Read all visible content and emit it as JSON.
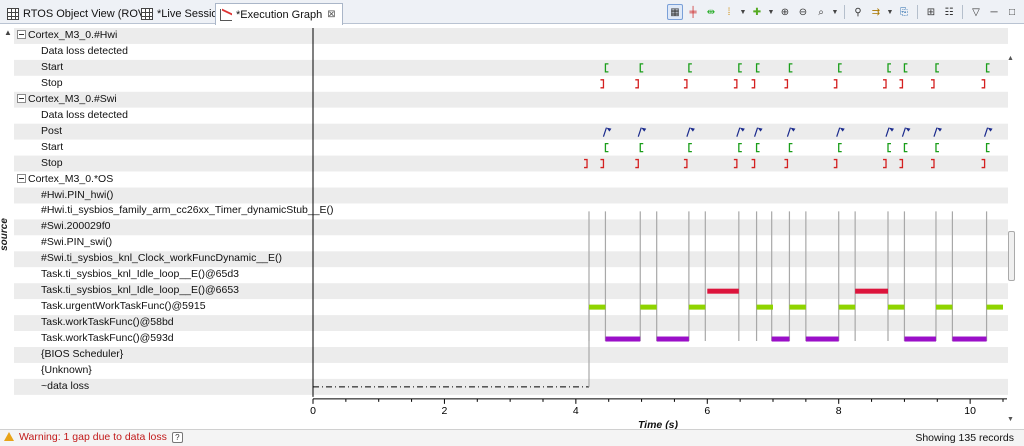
{
  "tabs": [
    {
      "label": "RTOS Object View (ROV)",
      "icon": "grid-icon",
      "active": false
    },
    {
      "label": "*Live Session",
      "icon": "grid-icon",
      "active": false
    },
    {
      "label": "*Execution Graph",
      "icon": "graph-icon",
      "active": true
    }
  ],
  "toolbar": {
    "buttons": [
      "view-toggle-icon",
      "align-time-icon",
      "measure-icon",
      "bookmark-icon",
      "zoom-in-icon",
      "zoom-out-icon",
      "zoom-fit-icon",
      "find-icon",
      "filter-icon",
      "export-icon",
      "sync-icon",
      "group-icon"
    ],
    "menu_label": "▽",
    "minimize_label": "─",
    "maximize_label": "□"
  },
  "axis": {
    "ylabel": "source",
    "xlabel": "Time (s)",
    "ticks": [
      0,
      2,
      4,
      6,
      8,
      10
    ],
    "xlim": [
      0,
      10.5
    ]
  },
  "rows": [
    {
      "label": "Cortex_M3_0.#Hwi",
      "group": true
    },
    {
      "label": "Data loss detected",
      "group": false
    },
    {
      "label": "Start",
      "group": false
    },
    {
      "label": "Stop",
      "group": false
    },
    {
      "label": "Cortex_M3_0.#Swi",
      "group": true
    },
    {
      "label": "Data loss detected",
      "group": false
    },
    {
      "label": "Post",
      "group": false
    },
    {
      "label": "Start",
      "group": false
    },
    {
      "label": "Stop",
      "group": false
    },
    {
      "label": "Cortex_M3_0.*OS",
      "group": true
    },
    {
      "label": "#Hwi.PIN_hwi()",
      "group": false
    },
    {
      "label": "#Hwi.ti_sysbios_family_arm_cc26xx_Timer_dynamicStub__E()",
      "group": false
    },
    {
      "label": "#Swi.200029f0",
      "group": false
    },
    {
      "label": "#Swi.PIN_swi()",
      "group": false
    },
    {
      "label": "#Swi.ti_sysbios_knl_Clock_workFuncDynamic__E()",
      "group": false
    },
    {
      "label": "Task.ti_sysbios_knl_Idle_loop__E()@65d3",
      "group": false
    },
    {
      "label": "Task.ti_sysbios_knl_Idle_loop__E()@6653",
      "group": false
    },
    {
      "label": "Task.urgentWorkTaskFunc()@5915",
      "group": false
    },
    {
      "label": "Task.workTaskFunc()@58bd",
      "group": false
    },
    {
      "label": "Task.workTaskFunc()@593d",
      "group": false
    },
    {
      "label": "{BIOS Scheduler}",
      "group": false
    },
    {
      "label": "{Unknown}",
      "group": false
    },
    {
      "label": "~data loss",
      "group": false
    }
  ],
  "chart_data": {
    "type": "timeline",
    "xlabel": "Time (s)",
    "ylabel": "source",
    "xlim": [
      0,
      10.5
    ],
    "colors": {
      "start": "#1a9e1a",
      "stop": "#d42020",
      "post": "#1a2a8c",
      "lime": "#8fd400",
      "red": "#dc143c",
      "purple": "#9a0fc8",
      "line": "#a8a8a8"
    },
    "hwi_start": [
      4.45,
      4.98,
      5.72,
      6.48,
      6.75,
      7.25,
      8.0,
      8.75,
      9.0,
      9.48,
      10.25
    ],
    "hwi_stop": [
      4.45,
      4.98,
      5.72,
      6.48,
      6.75,
      7.25,
      8.0,
      8.75,
      9.0,
      9.48,
      10.25
    ],
    "swi_post": [
      4.45,
      4.98,
      5.72,
      6.48,
      6.75,
      7.25,
      8.0,
      8.75,
      9.0,
      9.48,
      10.25
    ],
    "swi_start": [
      4.45,
      4.98,
      5.72,
      6.48,
      6.75,
      7.25,
      8.0,
      8.75,
      9.0,
      9.48,
      10.25
    ],
    "swi_stop": [
      4.2,
      4.45,
      4.98,
      5.72,
      6.48,
      6.75,
      7.25,
      8.0,
      8.75,
      9.0,
      9.48,
      10.25
    ],
    "urgent_lime": [
      [
        4.2,
        4.45
      ],
      [
        4.98,
        5.23
      ],
      [
        5.72,
        5.97
      ],
      [
        6.75,
        7.0
      ],
      [
        7.25,
        7.5
      ],
      [
        8.0,
        8.25
      ],
      [
        8.75,
        9.0
      ],
      [
        9.48,
        9.73
      ],
      [
        10.25,
        10.5
      ]
    ],
    "urgent_red": [
      [
        6.0,
        6.48
      ],
      [
        8.25,
        8.75
      ]
    ],
    "work593d_purple": [
      [
        4.45,
        4.98
      ],
      [
        5.23,
        5.72
      ],
      [
        6.98,
        7.25
      ],
      [
        7.5,
        8.0
      ],
      [
        9.0,
        9.48
      ],
      [
        9.73,
        10.25
      ]
    ],
    "switches": [
      4.2,
      4.45,
      4.98,
      5.23,
      5.72,
      5.97,
      6.48,
      6.75,
      6.98,
      7.25,
      7.5,
      8.0,
      8.25,
      8.75,
      9.0,
      9.48,
      9.73,
      10.25
    ],
    "data_loss": [
      0,
      4.2
    ]
  },
  "status": {
    "warning": "Warning: 1 gap due to data loss",
    "records": "Showing 135 records"
  }
}
